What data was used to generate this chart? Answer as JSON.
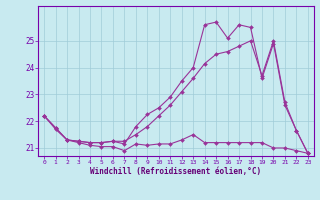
{
  "title": "",
  "xlabel": "Windchill (Refroidissement éolien,°C)",
  "background_color": "#c8eaf0",
  "grid_color": "#a0ccd8",
  "line_color": "#993399",
  "xlim": [
    -0.5,
    23.5
  ],
  "ylim": [
    20.7,
    26.3
  ],
  "yticks": [
    21,
    22,
    23,
    24,
    25
  ],
  "xticks": [
    0,
    1,
    2,
    3,
    4,
    5,
    6,
    7,
    8,
    9,
    10,
    11,
    12,
    13,
    14,
    15,
    16,
    17,
    18,
    19,
    20,
    21,
    22,
    23
  ],
  "series": [
    {
      "x": [
        0,
        1,
        2,
        3,
        4,
        5,
        6,
        7,
        8,
        9,
        10,
        11,
        12,
        13,
        14,
        15,
        16,
        17,
        18,
        19,
        20,
        21,
        22,
        23
      ],
      "y": [
        22.2,
        21.7,
        21.3,
        21.2,
        21.1,
        21.05,
        21.05,
        20.9,
        21.15,
        21.1,
        21.15,
        21.15,
        21.3,
        21.5,
        21.2,
        21.2,
        21.2,
        21.2,
        21.2,
        21.2,
        21.0,
        21.0,
        20.9,
        20.8
      ]
    },
    {
      "x": [
        0,
        1,
        2,
        3,
        4,
        5,
        6,
        7,
        8,
        9,
        10,
        11,
        12,
        13,
        14,
        15,
        16,
        17,
        18,
        19,
        20,
        21,
        22,
        23
      ],
      "y": [
        22.2,
        21.75,
        21.3,
        21.25,
        21.2,
        21.2,
        21.25,
        21.25,
        21.5,
        21.8,
        22.2,
        22.6,
        23.1,
        23.6,
        24.15,
        24.5,
        24.6,
        24.8,
        25.0,
        23.7,
        25.0,
        22.7,
        21.65,
        20.8
      ]
    },
    {
      "x": [
        0,
        1,
        2,
        3,
        4,
        5,
        6,
        7,
        8,
        9,
        10,
        11,
        12,
        13,
        14,
        15,
        16,
        17,
        18,
        19,
        20,
        21,
        22,
        23
      ],
      "y": [
        22.2,
        21.75,
        21.3,
        21.25,
        21.2,
        21.2,
        21.25,
        21.15,
        21.8,
        22.25,
        22.5,
        22.9,
        23.5,
        24.0,
        25.6,
        25.7,
        25.1,
        25.6,
        25.5,
        23.6,
        24.9,
        22.6,
        21.65,
        20.8
      ]
    }
  ]
}
